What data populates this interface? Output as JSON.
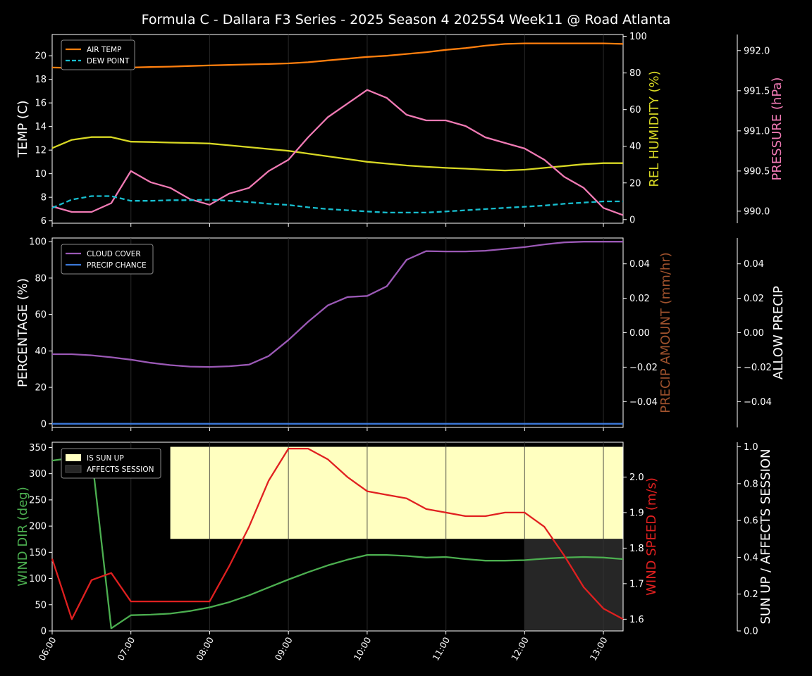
{
  "title": "Formula C -  Dallara F3 Series - 2025 Season 4 2025S4 Week11 @ Road Atlanta",
  "time_ticks": [
    "06:00",
    "07:00",
    "08:00",
    "09:00",
    "10:00",
    "11:00",
    "12:00",
    "13:00"
  ],
  "colors": {
    "air_temp": "#ff7f0e",
    "dew_point": "#17becf",
    "humidity": "#d8d824",
    "pressure": "#f07ab4",
    "cloud": "#9b59b6",
    "precip_chance": "#3b78d8",
    "precip_amount": "#a0522d",
    "wind_dir": "#4caf50",
    "wind_speed": "#e02020",
    "sun_up": "#ffffc0",
    "affects": "#262626"
  },
  "chart_data": [
    {
      "type": "line",
      "x": [
        0,
        0.25,
        0.5,
        0.75,
        1,
        1.25,
        1.5,
        1.75,
        2,
        2.25,
        2.5,
        2.75,
        3,
        3.25,
        3.5,
        3.75,
        4,
        4.25,
        4.5,
        4.75,
        5,
        5.25,
        5.5,
        5.75,
        6,
        6.25,
        6.5,
        6.75,
        7,
        7.25
      ],
      "xlim": [
        0,
        7.25
      ],
      "series": [
        {
          "name": "AIR TEMP",
          "axis": "left",
          "values": [
            19,
            18.97,
            18.95,
            18.96,
            19,
            19.04,
            19.08,
            19.13,
            19.18,
            19.22,
            19.26,
            19.3,
            19.35,
            19.45,
            19.6,
            19.75,
            19.9,
            20.0,
            20.15,
            20.3,
            20.5,
            20.65,
            20.85,
            21.0,
            21.05,
            21.05,
            21.05,
            21.05,
            21.05,
            21.0
          ]
        },
        {
          "name": "DEW POINT",
          "axis": "left",
          "dashed": true,
          "values": [
            7.1,
            7.8,
            8.1,
            8.1,
            7.7,
            7.7,
            7.75,
            7.75,
            7.8,
            7.7,
            7.6,
            7.45,
            7.35,
            7.15,
            7.0,
            6.9,
            6.8,
            6.7,
            6.7,
            6.7,
            6.8,
            6.9,
            7.0,
            7.1,
            7.2,
            7.3,
            7.45,
            7.55,
            7.65,
            7.65
          ]
        },
        {
          "name": "",
          "axis": "humidity",
          "values": [
            39,
            43.5,
            45,
            45,
            42.5,
            42.3,
            42,
            41.8,
            41.5,
            40.5,
            39.5,
            38.5,
            37.5,
            36,
            34.5,
            33,
            31.5,
            30.5,
            29.5,
            28.8,
            28.2,
            27.8,
            27.2,
            26.8,
            27.2,
            28.2,
            29.2,
            30.2,
            30.8,
            30.8
          ]
        },
        {
          "name": "",
          "axis": "pressure",
          "values": [
            990.06,
            989.99,
            989.99,
            990.1,
            990.5,
            990.36,
            990.29,
            990.15,
            990.08,
            990.22,
            990.29,
            990.5,
            990.64,
            990.92,
            991.17,
            991.34,
            991.51,
            991.41,
            991.2,
            991.13,
            991.13,
            991.06,
            990.92,
            990.85,
            990.78,
            990.64,
            990.43,
            990.29,
            990.04,
            989.95
          ]
        }
      ],
      "ylabel_left": "TEMP (C)",
      "ylim_left": [
        5.8,
        21.8
      ],
      "ticks_left": [
        6,
        8,
        10,
        12,
        14,
        16,
        18,
        20
      ],
      "ylabel_humidity": "REL HUMIDITY (%)",
      "ylim_humidity": [
        -2,
        101
      ],
      "ticks_humidity": [
        0,
        20,
        40,
        60,
        80,
        100
      ],
      "ylabel_pressure": "PRESSURE (hPa)",
      "ylim_pressure": [
        989.85,
        992.2
      ],
      "ticks_pressure": [
        "990.0",
        "990.5",
        "991.0",
        "991.5",
        "992.0"
      ],
      "legend": [
        "AIR TEMP",
        "DEW POINT"
      ],
      "legend_position": "top-left"
    },
    {
      "type": "line",
      "x": [
        0,
        0.25,
        0.5,
        0.75,
        1,
        1.25,
        1.5,
        1.75,
        2,
        2.25,
        2.5,
        2.75,
        3,
        3.25,
        3.5,
        3.75,
        4,
        4.25,
        4.5,
        4.75,
        5,
        5.25,
        5.5,
        5.75,
        6,
        6.25,
        6.5,
        6.75,
        7,
        7.25
      ],
      "series": [
        {
          "name": "CLOUD COVER",
          "axis": "left",
          "values": [
            38.2,
            38.2,
            37.6,
            36.5,
            35.2,
            33.5,
            32.2,
            31.4,
            31.2,
            31.6,
            32.5,
            37.2,
            46,
            56,
            65,
            69.6,
            70.2,
            75.5,
            90,
            94.8,
            94.6,
            94.6,
            95,
            96,
            97,
            98.5,
            99.6,
            100,
            100,
            100
          ]
        },
        {
          "name": "PRECIP CHANCE",
          "axis": "left",
          "values": [
            0,
            0,
            0,
            0,
            0,
            0,
            0,
            0,
            0,
            0,
            0,
            0,
            0,
            0,
            0,
            0,
            0,
            0,
            0,
            0,
            0,
            0,
            0,
            0,
            0,
            0,
            0,
            0,
            0,
            0
          ]
        }
      ],
      "ylabel_left": "PERCENTAGE (%)",
      "ylim_left": [
        -2,
        102
      ],
      "ticks_left": [
        0,
        20,
        40,
        60,
        80,
        100
      ],
      "ylabel_right": "PRECIP AMOUNT (mm/hr)",
      "ylim_right": [
        -0.055,
        0.055
      ],
      "ticks_right": [
        "−0.04",
        "−0.02",
        "0.00",
        "0.02",
        "0.04"
      ],
      "ylabel_far": "ALLOW PRECIP",
      "ticks_far": [
        "−0.04",
        "−0.02",
        "0.00",
        "0.02",
        "0.04"
      ],
      "legend": [
        "CLOUD COVER",
        "PRECIP CHANCE"
      ],
      "legend_position": "top-left"
    },
    {
      "type": "line",
      "x": [
        0,
        0.25,
        0.5,
        0.75,
        1,
        1.25,
        1.5,
        1.75,
        2,
        2.25,
        2.5,
        2.75,
        3,
        3.25,
        3.5,
        3.75,
        4,
        4.25,
        4.5,
        4.75,
        5,
        5.25,
        5.5,
        5.75,
        6,
        6.25,
        6.5,
        6.75,
        7,
        7.25
      ],
      "series": [
        {
          "name": "",
          "axis": "left",
          "values": [
            325,
            330,
            337,
            5,
            30,
            31,
            33,
            38,
            45,
            55,
            68,
            83,
            98,
            112,
            125,
            136,
            145,
            145,
            143,
            140,
            141,
            137,
            134,
            134,
            135,
            138,
            140,
            141,
            140,
            137
          ]
        },
        {
          "name": "",
          "axis": "wind_speed",
          "values": [
            1.77,
            1.6,
            1.71,
            1.73,
            1.65,
            1.65,
            1.65,
            1.65,
            1.65,
            1.75,
            1.86,
            1.99,
            2.08,
            2.08,
            2.05,
            2.0,
            1.96,
            1.95,
            1.94,
            1.91,
            1.9,
            1.89,
            1.89,
            1.9,
            1.9,
            1.86,
            1.78,
            1.69,
            1.63,
            1.6
          ]
        }
      ],
      "ylabel_left": "WIND DIR (deg)",
      "ylim_left": [
        0,
        360
      ],
      "ticks_left": [
        0,
        50,
        100,
        150,
        200,
        250,
        300,
        350
      ],
      "ylabel_wind_speed": "WIND SPEED (m/s)",
      "ylim_wind_speed": [
        1.567,
        2.098
      ],
      "ticks_wind_speed": [
        "1.6",
        "1.7",
        "1.8",
        "1.9",
        "2.0"
      ],
      "ylabel_far": "SUN UP / AFFECTS SESSION",
      "ylim_far": [
        0,
        1.025
      ],
      "ticks_far": [
        "0.0",
        "0.2",
        "0.4",
        "0.6",
        "0.8",
        "1.0"
      ],
      "bands": [
        {
          "name": "IS SUN UP",
          "x_start": 1.5,
          "x_end": 7.25,
          "value": 1.0
        },
        {
          "name": "AFFECTS SESSION",
          "x_start": 6.0,
          "x_end": 7.25,
          "value": 0.5
        }
      ],
      "legend": [
        "IS SUN UP",
        "AFFECTS SESSION"
      ],
      "legend_position": "top-left"
    }
  ]
}
